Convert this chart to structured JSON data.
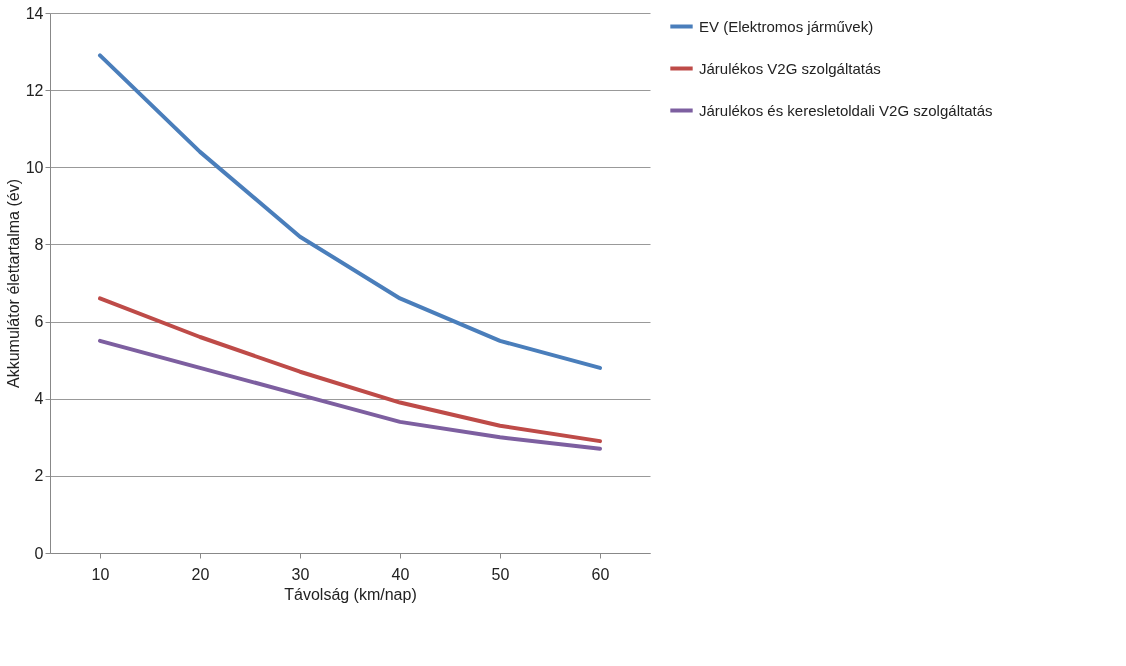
{
  "chart_data": {
    "type": "line",
    "xlabel": "Távolság (km/nap)",
    "ylabel": "Akkumulátor élettartalma (év)",
    "categories": [
      "10",
      "20",
      "30",
      "40",
      "50",
      "60"
    ],
    "series": [
      {
        "name": "EV (Elektromos járművek)",
        "color": "#4a7ebb",
        "values": [
          12.9,
          10.4,
          8.2,
          6.6,
          5.5,
          4.8
        ]
      },
      {
        "name": "Járulékos V2G szolgáltatás",
        "color": "#be4b48",
        "values": [
          6.6,
          5.6,
          4.7,
          3.9,
          3.3,
          2.9
        ]
      },
      {
        "name": "Járulékos és keresletoldali V2G szolgáltatás",
        "color": "#7d5fa0",
        "values": [
          5.5,
          4.8,
          4.1,
          3.4,
          3.0,
          2.7
        ]
      }
    ],
    "ylim": [
      0,
      14
    ],
    "yticks": [
      0,
      2,
      4,
      6,
      8,
      10,
      12,
      14
    ],
    "grid": "y",
    "legend": "right",
    "marker": "none",
    "line_style": "solid"
  }
}
